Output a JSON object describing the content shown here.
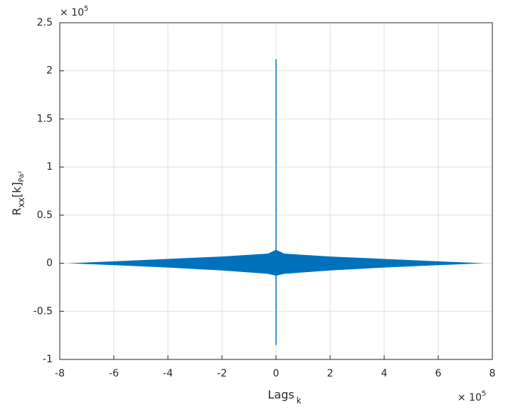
{
  "chart_data": {
    "type": "area",
    "ylabel": {
      "main": "R",
      "sub": "xx",
      "mid": "[k]",
      "unit": "Pa²"
    },
    "xlabel": {
      "main": "Lags",
      "sub": "k"
    },
    "x_multiplier": {
      "base": "× 10",
      "exp": "5"
    },
    "y_multiplier": {
      "base": "× 10",
      "exp": "5"
    },
    "x": [
      -7.7,
      -6,
      -4,
      -2,
      -0.3,
      0,
      0.3,
      2,
      4,
      6,
      7.7
    ],
    "series": [
      {
        "color": "#0072bd",
        "values": [
          0,
          0.02,
          0.045,
          0.07,
          0.1,
          0.14,
          0.1,
          0.07,
          0.045,
          0.02,
          0
        ]
      },
      {
        "color": "#0072bd",
        "values": [
          0,
          -0.02,
          -0.045,
          -0.075,
          -0.11,
          -0.13,
          -0.11,
          -0.075,
          -0.045,
          -0.02,
          0
        ]
      }
    ],
    "spike": {
      "x": 0,
      "values": [
        -0.85,
        2.12
      ],
      "color": "#0072bd"
    },
    "xlim": [
      -8,
      8
    ],
    "xticks": [
      -8,
      -6,
      -4,
      -2,
      0,
      2,
      4,
      6,
      8
    ],
    "ylim": [
      -1,
      2.5
    ],
    "yticks": [
      -1,
      -0.5,
      0,
      0.5,
      1,
      1.5,
      2,
      2.5
    ],
    "grid": true
  }
}
